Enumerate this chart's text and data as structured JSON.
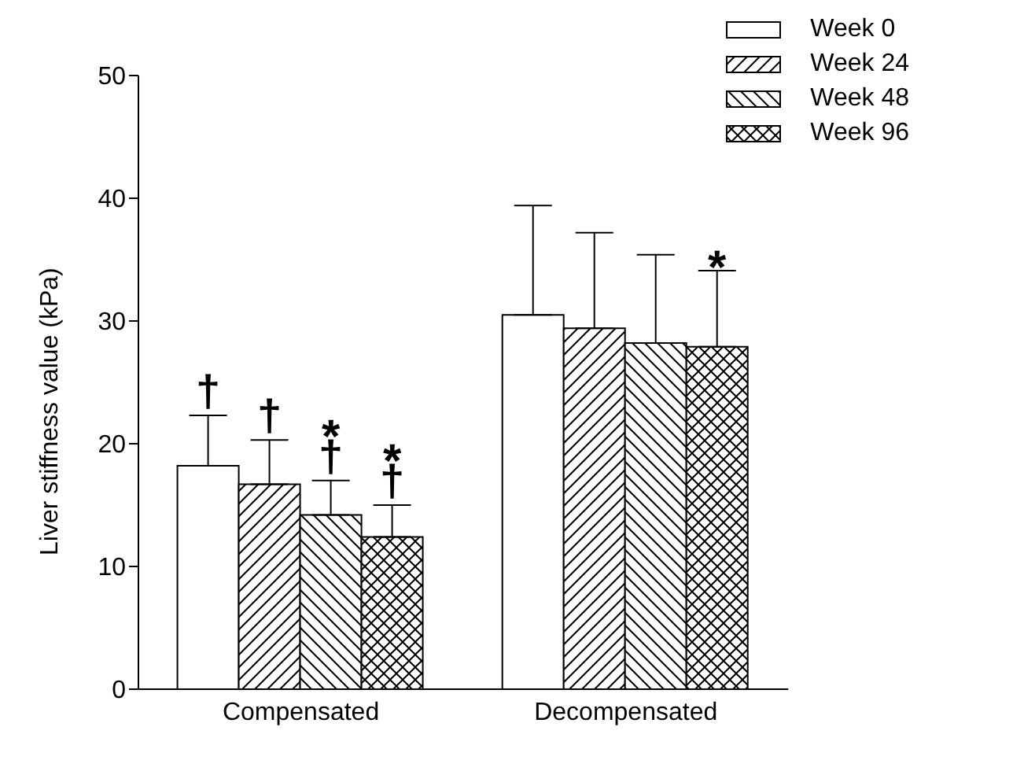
{
  "chart_data": {
    "type": "bar",
    "ylabel": "Liver stiffness value (kPa)",
    "categories": [
      "Compensated",
      "Decompensated"
    ],
    "series": [
      {
        "name": "Week 0",
        "color": "#000000",
        "values": [
          18.2,
          30.5
        ],
        "errors": [
          [
            18.2,
            22.3
          ],
          [
            30.5,
            39.4
          ]
        ]
      },
      {
        "name": "Week 24",
        "color": "#000000",
        "values": [
          16.7,
          29.4
        ],
        "errors": [
          [
            16.7,
            20.3
          ],
          [
            29.4,
            37.2
          ]
        ]
      },
      {
        "name": "Week 48",
        "color": "#000000",
        "values": [
          14.2,
          28.2
        ],
        "errors": [
          [
            14.2,
            17.0
          ],
          [
            28.2,
            35.4
          ]
        ]
      },
      {
        "name": "Week 96",
        "color": "#000000",
        "values": [
          12.4,
          27.9
        ],
        "errors": [
          [
            12.4,
            15.0
          ],
          [
            27.9,
            34.1
          ]
        ]
      }
    ],
    "ylim": [
      0,
      50
    ],
    "yticks": [
      0,
      10,
      20,
      30,
      40,
      50
    ],
    "grid": false,
    "legend": "top right",
    "annotations": [
      "†",
      "†",
      "†",
      "*",
      "†",
      "*",
      "*"
    ]
  }
}
